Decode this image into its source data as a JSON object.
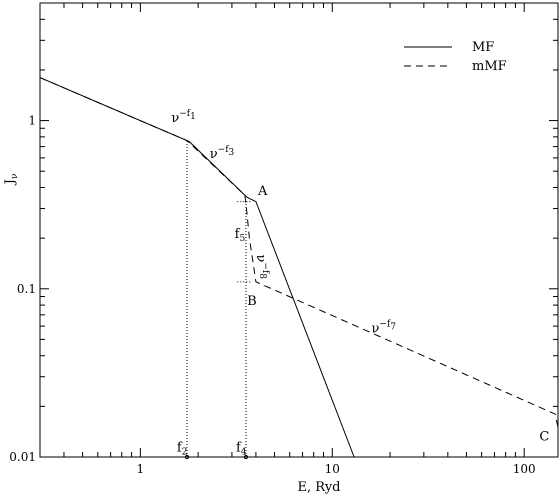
{
  "chart_data": {
    "type": "line",
    "title": "",
    "xlabel": "E, Ryd",
    "ylabel": "Jν",
    "ylabel_main": "J",
    "ylabel_sub": "ν",
    "xscale": "log",
    "yscale": "log",
    "xlim": [
      0.3,
      150
    ],
    "ylim": [
      0.01,
      5
    ],
    "grid": false,
    "legend_position": "top-right",
    "x_ticks": [
      {
        "value": 1,
        "label": "1"
      },
      {
        "value": 10,
        "label": "10"
      },
      {
        "value": 100,
        "label": "100"
      }
    ],
    "y_ticks": [
      {
        "value": 0.01,
        "label": "0.01"
      },
      {
        "value": 0.1,
        "label": "0.1"
      },
      {
        "value": 1,
        "label": "1"
      }
    ],
    "series": [
      {
        "name": "MF",
        "style": "solid",
        "x": [
          0.3,
          1.8,
          3.6,
          4.0,
          13.0
        ],
        "y": [
          1.8,
          0.75,
          0.35,
          0.33,
          0.01
        ]
      },
      {
        "name": "mMF",
        "style": "dashed",
        "x": [
          0.3,
          1.75,
          3.5,
          3.55,
          3.7,
          4.0,
          145,
          150
        ],
        "y": [
          1.8,
          0.76,
          0.36,
          0.32,
          0.2,
          0.11,
          0.018,
          0.015
        ]
      }
    ],
    "reference_lines": [
      {
        "x": [
          1.75,
          1.75
        ],
        "y": [
          0.01,
          0.76
        ]
      },
      {
        "x": [
          3.55,
          3.55
        ],
        "y": [
          0.01,
          0.33
        ]
      },
      {
        "x": [
          3.2,
          3.8
        ],
        "y": [
          0.33,
          0.33
        ]
      },
      {
        "x": [
          3.2,
          3.8
        ],
        "y": [
          0.11,
          0.11
        ]
      }
    ],
    "annotations": [
      {
        "id": "f1",
        "base": "ν",
        "sup": "−f",
        "sup_sub": "1",
        "x": 1.45,
        "y": 0.98
      },
      {
        "id": "f3",
        "base": "ν",
        "sup": "−f",
        "sup_sub": "3",
        "x": 2.3,
        "y": 0.6
      },
      {
        "id": "f7",
        "base": "ν",
        "sup": "−f",
        "sup_sub": "7",
        "x": 16,
        "y": 0.055
      },
      {
        "id": "A",
        "text": "A",
        "x": 4.1,
        "y": 0.36
      },
      {
        "id": "B",
        "text": "B",
        "x": 3.6,
        "y": 0.08
      },
      {
        "id": "C",
        "text": "C",
        "x": 120,
        "y": 0.0125
      },
      {
        "id": "f5",
        "text": "f",
        "sub": "5",
        "x": 3.1,
        "y": 0.2
      },
      {
        "id": "f2",
        "text": "f",
        "sub": "2",
        "x": 1.55,
        "y": 0.0108
      },
      {
        "id": "f4",
        "text": "f",
        "sub": "4",
        "x": 3.15,
        "y": 0.0108
      }
    ],
    "rotated_annotation": {
      "base": "ν",
      "sup": "−f",
      "sup_sub": "8",
      "x": 4.05,
      "y": 0.16,
      "rotation_deg": 90
    }
  },
  "legend": {
    "items": [
      {
        "label": "MF",
        "style": "solid"
      },
      {
        "label": "mMF",
        "style": "dashed"
      }
    ]
  }
}
